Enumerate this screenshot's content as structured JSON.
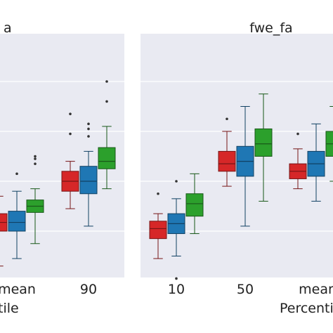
{
  "chart_data": [
    {
      "type": "box",
      "title": "a",
      "xlabel": "tile",
      "ylabel": "",
      "categories": [
        "mean",
        "90"
      ],
      "grid": true,
      "series": [
        {
          "color": "#d62728",
          "boxes": [
            {
              "whislo": 0.06,
              "q1": 0.2,
              "med": 0.235,
              "q3": 0.27,
              "whishi": 0.34,
              "fliers": [
                0.37
              ]
            },
            {
              "whislo": 0.29,
              "q1": 0.36,
              "med": 0.4,
              "q3": 0.44,
              "whishi": 0.48,
              "fliers": [
                0.59,
                0.67
              ]
            }
          ]
        },
        {
          "color": "#1f77b4",
          "boxes": [
            {
              "whislo": 0.09,
              "q1": 0.2,
              "med": 0.235,
              "q3": 0.28,
              "whishi": 0.36,
              "fliers": [
                0.43
              ]
            },
            {
              "whislo": 0.22,
              "q1": 0.35,
              "med": 0.4,
              "q3": 0.46,
              "whishi": 0.52,
              "fliers": [
                0.58,
                0.61,
                0.63
              ]
            }
          ]
        },
        {
          "color": "#2ca02c",
          "boxes": [
            {
              "whislo": 0.15,
              "q1": 0.275,
              "med": 0.3,
              "q3": 0.325,
              "whishi": 0.37,
              "fliers": [
                0.47,
                0.49,
                0.5
              ]
            },
            {
              "whislo": 0.37,
              "q1": 0.45,
              "med": 0.48,
              "q3": 0.535,
              "whishi": 0.62,
              "fliers": [
                0.72,
                0.8
              ]
            }
          ]
        }
      ]
    },
    {
      "type": "box",
      "title": "fwe_fa",
      "xlabel": "Percentile",
      "ylabel": "",
      "categories": [
        "10",
        "50",
        "mear"
      ],
      "grid": true,
      "series": [
        {
          "color": "#d62728",
          "boxes": [
            {
              "whislo": 0.09,
              "q1": 0.17,
              "med": 0.21,
              "q3": 0.24,
              "whishi": 0.27,
              "fliers": [
                0.35
              ]
            },
            {
              "whislo": 0.38,
              "q1": 0.44,
              "med": 0.47,
              "q3": 0.52,
              "whishi": 0.6,
              "fliers": [
                0.65
              ]
            },
            {
              "whislo": 0.37,
              "q1": 0.41,
              "med": 0.44,
              "q3": 0.47,
              "whishi": 0.53,
              "fliers": [
                0.59
              ]
            }
          ]
        },
        {
          "color": "#1f77b4",
          "boxes": [
            {
              "whislo": 0.1,
              "q1": 0.19,
              "med": 0.23,
              "q3": 0.27,
              "whishi": 0.33,
              "fliers": [
                0.4,
                0.01
              ]
            },
            {
              "whislo": 0.22,
              "q1": 0.42,
              "med": 0.48,
              "q3": 0.54,
              "whishi": 0.7,
              "fliers": []
            },
            {
              "whislo": 0.32,
              "q1": 0.42,
              "med": 0.47,
              "q3": 0.52,
              "whishi": 0.63,
              "fliers": []
            }
          ]
        },
        {
          "color": "#2ca02c",
          "boxes": [
            {
              "whislo": 0.19,
              "q1": 0.26,
              "med": 0.31,
              "q3": 0.35,
              "whishi": 0.43,
              "fliers": []
            },
            {
              "whislo": 0.32,
              "q1": 0.5,
              "med": 0.55,
              "q3": 0.61,
              "whishi": 0.75,
              "fliers": []
            },
            {
              "whislo": 0.4,
              "q1": 0.5,
              "med": 0.55,
              "q3": 0.6,
              "whishi": 0.7,
              "fliers": []
            }
          ]
        }
      ]
    }
  ]
}
